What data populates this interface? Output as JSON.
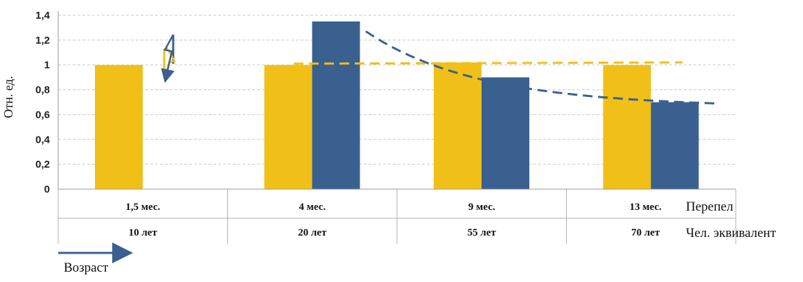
{
  "chart_data": {
    "type": "bar",
    "ylabel": "Отн. ед.",
    "ylim": [
      0,
      1.4
    ],
    "yticks": [
      "0",
      "0,2",
      "0,4",
      "0,6",
      "0,8",
      "1",
      "1,2",
      "1,4"
    ],
    "grid": true,
    "categories": [
      {
        "top": "1,5 мес.",
        "bottom": "10 лет"
      },
      {
        "top": "4 мес.",
        "bottom": "20 лет"
      },
      {
        "top": "9 мес.",
        "bottom": "55 лет"
      },
      {
        "top": "13 мес.",
        "bottom": "70 лет"
      }
    ],
    "row_labels": [
      "Перепел",
      "Чел. эквивалент"
    ],
    "series": [
      {
        "values": [
          1.0,
          1.0,
          1.02,
          1.0
        ],
        "color": "#F0C018"
      },
      {
        "values": [
          null,
          1.35,
          0.9,
          0.7
        ],
        "color": "#3A6090"
      }
    ],
    "trendlines": [
      {
        "style": "dashed",
        "color": "#F0C018",
        "values": [
          1.01,
          1.02
        ]
      },
      {
        "style": "dashed",
        "color": "#3A6090",
        "values": [
          1.27,
          0.69
        ]
      }
    ],
    "axis_note": "Возраст",
    "lightning_icon": "lightning-bolt-icon"
  }
}
